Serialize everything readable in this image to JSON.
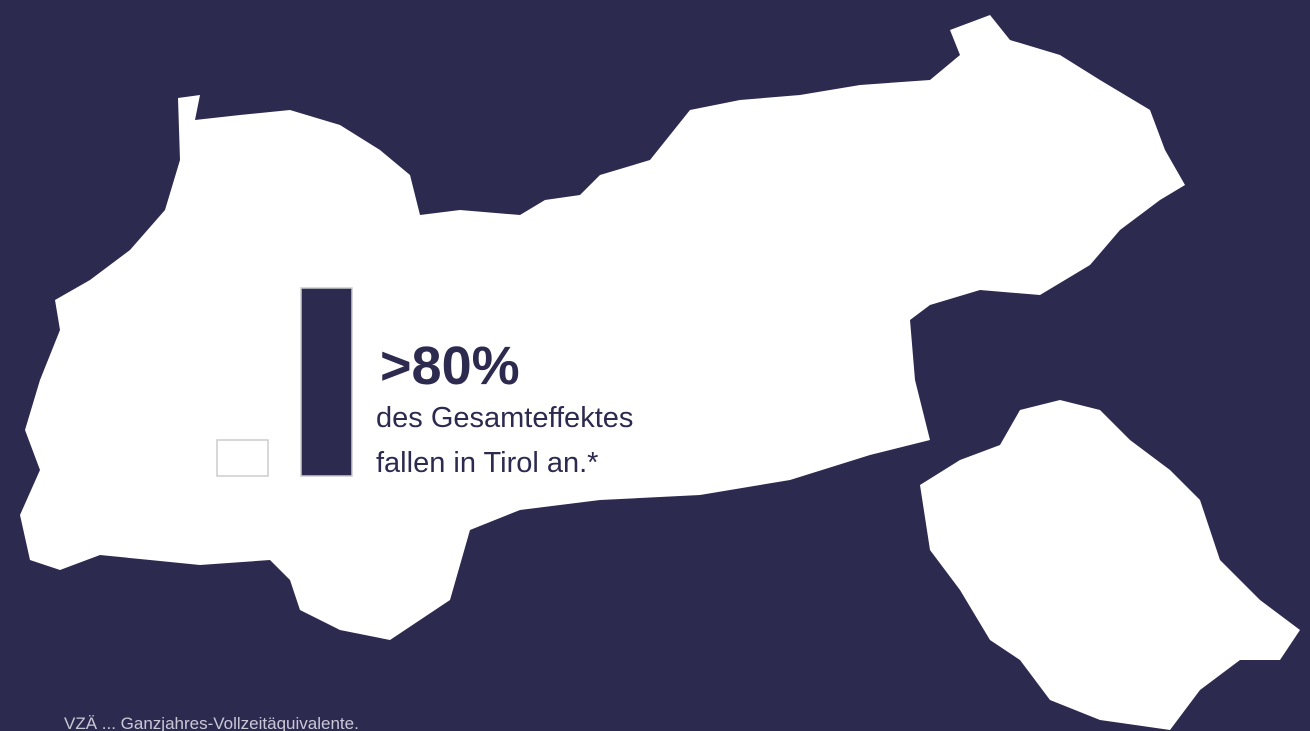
{
  "headline": ">80%",
  "text_lines": [
    "des Gesamteffektes",
    "fallen in Tirol an.*"
  ],
  "footnote": "VZÄ ... Ganzjahres-Vollzeitäquivalente."
}
